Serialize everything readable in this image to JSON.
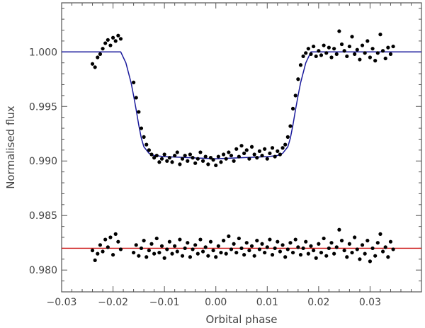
{
  "chart_data": {
    "type": "scatter",
    "title": "",
    "xlabel": "Orbital phase",
    "ylabel": "Normalised flux",
    "xlim": [
      -0.03,
      0.04
    ],
    "ylim": [
      0.978,
      1.0045
    ],
    "xticks": [
      -0.03,
      -0.02,
      -0.01,
      0.0,
      0.01,
      0.02,
      0.03
    ],
    "xtick_labels": [
      "−0.03",
      "−0.02",
      "−0.01",
      "0.00",
      "0.01",
      "0.02",
      "0.03"
    ],
    "yticks": [
      0.98,
      0.985,
      0.99,
      0.995,
      1.0
    ],
    "ytick_labels": [
      "0.980",
      "0.985",
      "0.990",
      "0.995",
      "1.000"
    ],
    "grid": false,
    "colors": {
      "points": "#000000",
      "model": "#1a1a9c",
      "residual_reference": "#cc1111",
      "axes": "#555555"
    },
    "series": [
      {
        "type": "scatter",
        "x": [
          -0.024,
          -0.0235,
          -0.023,
          -0.0225,
          -0.022,
          -0.0215,
          -0.021,
          -0.0205,
          -0.02,
          -0.0195,
          -0.019,
          -0.0185,
          -0.016,
          -0.0155,
          -0.015,
          -0.0145,
          -0.014,
          -0.0135,
          -0.013,
          -0.0125,
          -0.012,
          -0.0115,
          -0.011,
          -0.0105,
          -0.01,
          -0.0095,
          -0.009,
          -0.0085,
          -0.008,
          -0.0075,
          -0.007,
          -0.0065,
          -0.006,
          -0.0055,
          -0.005,
          -0.0045,
          -0.004,
          -0.0035,
          -0.003,
          -0.0025,
          -0.002,
          -0.0015,
          -0.001,
          -0.0005,
          0.0,
          0.0005,
          0.001,
          0.0015,
          0.002,
          0.0025,
          0.003,
          0.0035,
          0.004,
          0.0045,
          0.005,
          0.0055,
          0.006,
          0.0065,
          0.007,
          0.0075,
          0.008,
          0.0085,
          0.009,
          0.0095,
          0.01,
          0.0105,
          0.011,
          0.0115,
          0.012,
          0.0125,
          0.013,
          0.0135,
          0.014,
          0.0145,
          0.015,
          0.0155,
          0.016,
          0.0165,
          0.017,
          0.0175,
          0.018,
          0.0185,
          0.019,
          0.0195,
          0.02,
          0.0205,
          0.021,
          0.0215,
          0.022,
          0.0225,
          0.023,
          0.0235,
          0.024,
          0.0245,
          0.025,
          0.0255,
          0.026,
          0.0265,
          0.027,
          0.0275,
          0.028,
          0.0285,
          0.029,
          0.0295,
          0.03,
          0.0305,
          0.031,
          0.0315,
          0.032,
          0.0325,
          0.033,
          0.0335,
          0.034,
          0.0345
        ],
        "y": [
          0.9989,
          0.9986,
          0.9995,
          0.9998,
          1.0003,
          1.0008,
          1.0011,
          1.0006,
          1.0013,
          1.001,
          1.0015,
          1.0012,
          0.9972,
          0.9958,
          0.9945,
          0.993,
          0.9922,
          0.9915,
          0.991,
          0.9906,
          0.9903,
          0.9905,
          0.9899,
          0.9902,
          0.9906,
          0.99,
          0.9903,
          0.9899,
          0.9905,
          0.9908,
          0.9897,
          0.9902,
          0.9905,
          0.99,
          0.9906,
          0.9903,
          0.9898,
          0.9902,
          0.9908,
          0.99,
          0.9904,
          0.9897,
          0.9903,
          0.9901,
          0.9896,
          0.9904,
          0.9899,
          0.9906,
          0.9902,
          0.9908,
          0.9905,
          0.99,
          0.9911,
          0.9904,
          0.9914,
          0.9907,
          0.991,
          0.9902,
          0.9913,
          0.9906,
          0.9903,
          0.9909,
          0.9905,
          0.9911,
          0.9902,
          0.9907,
          0.9912,
          0.9904,
          0.9909,
          0.9906,
          0.9912,
          0.9915,
          0.9922,
          0.9932,
          0.9948,
          0.996,
          0.9975,
          0.9988,
          0.9996,
          0.9999,
          1.0003,
          0.9998,
          1.0005,
          0.9996,
          1.0001,
          0.9997,
          1.0006,
          0.9999,
          1.0004,
          0.9995,
          1.0003,
          0.9998,
          1.0019,
          1.0007,
          1.0001,
          0.9996,
          1.0005,
          1.0014,
          0.9998,
          1.0002,
          0.9993,
          1.0006,
          0.9999,
          1.001,
          0.9995,
          1.0003,
          0.9992,
          0.9999,
          1.0016,
          1.0001,
          0.9994,
          1.0004,
          0.9998,
          1.0005
        ]
      },
      {
        "type": "line",
        "x": [
          -0.03,
          -0.0185,
          -0.0175,
          -0.0165,
          -0.016,
          -0.0155,
          -0.015,
          -0.0145,
          -0.014,
          -0.013,
          -0.012,
          -0.01,
          -0.005,
          0.0,
          0.005,
          0.01,
          0.012,
          0.013,
          0.014,
          0.0145,
          0.015,
          0.0155,
          0.016,
          0.0165,
          0.0175,
          0.0185,
          0.04
        ],
        "y": [
          1.0,
          1.0,
          0.999,
          0.9972,
          0.996,
          0.9947,
          0.9933,
          0.9921,
          0.9913,
          0.9907,
          0.9905,
          0.9904,
          0.9903,
          0.9902,
          0.9903,
          0.9904,
          0.9905,
          0.9907,
          0.9913,
          0.9921,
          0.9933,
          0.9947,
          0.996,
          0.9972,
          0.999,
          1.0,
          1.0
        ]
      },
      {
        "type": "scatter",
        "x": [
          -0.024,
          -0.0235,
          -0.023,
          -0.0225,
          -0.022,
          -0.0215,
          -0.021,
          -0.0205,
          -0.02,
          -0.0195,
          -0.019,
          -0.0185,
          -0.016,
          -0.0155,
          -0.015,
          -0.0145,
          -0.014,
          -0.0135,
          -0.013,
          -0.0125,
          -0.012,
          -0.0115,
          -0.011,
          -0.0105,
          -0.01,
          -0.0095,
          -0.009,
          -0.0085,
          -0.008,
          -0.0075,
          -0.007,
          -0.0065,
          -0.006,
          -0.0055,
          -0.005,
          -0.0045,
          -0.004,
          -0.0035,
          -0.003,
          -0.0025,
          -0.002,
          -0.0015,
          -0.001,
          -0.0005,
          0.0,
          0.0005,
          0.001,
          0.0015,
          0.002,
          0.0025,
          0.003,
          0.0035,
          0.004,
          0.0045,
          0.005,
          0.0055,
          0.006,
          0.0065,
          0.007,
          0.0075,
          0.008,
          0.0085,
          0.009,
          0.0095,
          0.01,
          0.0105,
          0.011,
          0.0115,
          0.012,
          0.0125,
          0.013,
          0.0135,
          0.014,
          0.0145,
          0.015,
          0.0155,
          0.016,
          0.0165,
          0.017,
          0.0175,
          0.018,
          0.0185,
          0.019,
          0.0195,
          0.02,
          0.0205,
          0.021,
          0.0215,
          0.022,
          0.0225,
          0.023,
          0.0235,
          0.024,
          0.0245,
          0.025,
          0.0255,
          0.026,
          0.0265,
          0.027,
          0.0275,
          0.028,
          0.0285,
          0.029,
          0.0295,
          0.03,
          0.0305,
          0.031,
          0.0315,
          0.032,
          0.0325,
          0.033,
          0.0335,
          0.034,
          0.0345
        ],
        "y": [
          0.9818,
          0.9809,
          0.9815,
          0.9823,
          0.9817,
          0.9828,
          0.9821,
          0.983,
          0.9814,
          0.9833,
          0.9826,
          0.9819,
          0.9816,
          0.9823,
          0.9813,
          0.982,
          0.9827,
          0.9812,
          0.9818,
          0.9824,
          0.9815,
          0.9829,
          0.9816,
          0.9822,
          0.9811,
          0.9819,
          0.9826,
          0.9815,
          0.9822,
          0.9817,
          0.9828,
          0.9813,
          0.982,
          0.9825,
          0.9812,
          0.9819,
          0.9823,
          0.9815,
          0.9828,
          0.9817,
          0.9821,
          0.9813,
          0.9826,
          0.9818,
          0.9812,
          0.9822,
          0.9816,
          0.9827,
          0.9815,
          0.9831,
          0.9819,
          0.9824,
          0.9816,
          0.9829,
          0.982,
          0.9814,
          0.9825,
          0.9818,
          0.9822,
          0.9813,
          0.9827,
          0.9819,
          0.9824,
          0.9816,
          0.9821,
          0.9828,
          0.9814,
          0.982,
          0.9826,
          0.9817,
          0.9823,
          0.9812,
          0.9819,
          0.9825,
          0.9816,
          0.9828,
          0.9821,
          0.9814,
          0.982,
          0.9826,
          0.9815,
          0.9822,
          0.9818,
          0.9811,
          0.9824,
          0.9816,
          0.9829,
          0.9813,
          0.982,
          0.9825,
          0.9815,
          0.9821,
          0.9837,
          0.9827,
          0.9818,
          0.9812,
          0.9824,
          0.9816,
          0.983,
          0.9819,
          0.981,
          0.9823,
          0.9815,
          0.9827,
          0.9808,
          0.982,
          0.9813,
          0.9825,
          0.9833,
          0.9817,
          0.9821,
          0.9812,
          0.9826,
          0.9819
        ]
      },
      {
        "type": "line",
        "x": [
          -0.03,
          0.04
        ],
        "y": [
          0.982,
          0.982
        ]
      }
    ]
  }
}
